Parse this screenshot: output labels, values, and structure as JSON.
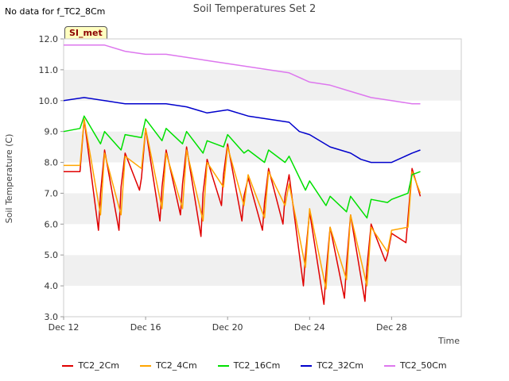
{
  "header": {
    "no_data": "No data for f_TC2_8Cm",
    "title": "Soil Temperatures Set 2",
    "badge": "SI_met"
  },
  "chart_data": {
    "type": "line",
    "title": "Soil Temperatures Set 2",
    "xlabel": "Time",
    "ylabel": "Soil Temperature (C)",
    "xlim": [
      0,
      19.4
    ],
    "ylim": [
      3.0,
      12.0
    ],
    "y_ticks": [
      "3.0",
      "4.0",
      "5.0",
      "6.0",
      "7.0",
      "8.0",
      "9.0",
      "10.0",
      "11.0",
      "12.0"
    ],
    "x_ticks": [
      {
        "label": "Dec 12",
        "value": 0
      },
      {
        "label": "Dec 16",
        "value": 4
      },
      {
        "label": "Dec 20",
        "value": 8
      },
      {
        "label": "Dec 24",
        "value": 12
      },
      {
        "label": "Dec 28",
        "value": 16
      }
    ],
    "grid": true,
    "legend_position": "bottom",
    "x_units": "days since Dec 12",
    "series": [
      {
        "name": "TC2_2Cm",
        "color": "#e00000",
        "x": [
          0,
          0.8,
          1.0,
          1.7,
          1.8,
          2.0,
          2.7,
          2.8,
          3.0,
          3.7,
          3.8,
          4.0,
          4.7,
          4.8,
          5.0,
          5.7,
          5.8,
          6.0,
          6.7,
          6.8,
          7.0,
          7.7,
          7.8,
          8.0,
          8.7,
          8.8,
          9.0,
          9.7,
          9.8,
          10.0,
          10.7,
          10.8,
          11.0,
          11.7,
          11.8,
          12.0,
          12.7,
          12.8,
          13.0,
          13.7,
          13.8,
          14.0,
          14.7,
          14.8,
          15.0,
          15.7,
          15.8,
          16.0,
          16.7,
          16.8,
          17.0,
          17.4
        ],
        "values": [
          7.7,
          7.7,
          9.4,
          5.8,
          7.0,
          8.4,
          5.8,
          7.2,
          8.3,
          7.1,
          7.5,
          9.1,
          6.1,
          7.2,
          8.4,
          6.3,
          7.3,
          8.5,
          5.6,
          7.0,
          8.1,
          6.6,
          7.6,
          8.6,
          6.1,
          6.9,
          7.5,
          5.8,
          6.7,
          7.8,
          6.0,
          6.9,
          7.6,
          4.0,
          5.0,
          6.4,
          3.4,
          4.4,
          5.9,
          3.6,
          4.7,
          6.3,
          3.5,
          4.6,
          6.0,
          4.8,
          5.0,
          5.7,
          5.4,
          6.2,
          7.8,
          6.9
        ]
      },
      {
        "name": "TC2_4Cm",
        "color": "#ffa500",
        "x": [
          0,
          0.8,
          1.0,
          1.8,
          2.0,
          2.8,
          3.0,
          3.8,
          4.0,
          4.8,
          5.0,
          5.8,
          6.0,
          6.8,
          7.0,
          7.8,
          8.0,
          8.8,
          9.0,
          9.8,
          10.0,
          10.8,
          11.0,
          11.8,
          12.0,
          12.8,
          13.0,
          13.8,
          14.0,
          14.8,
          15.0,
          15.8,
          16.0,
          16.8,
          17.0,
          17.4
        ],
        "values": [
          7.9,
          7.9,
          9.4,
          6.3,
          8.3,
          6.3,
          8.2,
          7.8,
          9.1,
          6.5,
          8.3,
          6.5,
          8.4,
          6.1,
          8.0,
          7.2,
          8.5,
          6.6,
          7.6,
          6.2,
          7.7,
          6.6,
          7.3,
          4.6,
          6.5,
          3.9,
          5.9,
          4.2,
          6.3,
          4.0,
          5.9,
          5.1,
          5.8,
          5.9,
          7.7,
          7.0
        ]
      },
      {
        "name": "TC2_16Cm",
        "color": "#00e000",
        "x": [
          0,
          0.8,
          1.0,
          1.8,
          2.0,
          2.8,
          3.0,
          3.8,
          4.0,
          4.8,
          5.0,
          5.8,
          6.0,
          6.8,
          7.0,
          7.8,
          8.0,
          8.8,
          9.0,
          9.8,
          10.0,
          10.8,
          11.0,
          11.8,
          12.0,
          12.8,
          13.0,
          13.8,
          14.0,
          14.8,
          15.0,
          15.8,
          16.0,
          16.8,
          17.0,
          17.4
        ],
        "values": [
          9.0,
          9.1,
          9.5,
          8.6,
          9.0,
          8.4,
          8.9,
          8.8,
          9.4,
          8.7,
          9.1,
          8.6,
          9.0,
          8.3,
          8.7,
          8.5,
          8.9,
          8.3,
          8.4,
          8.0,
          8.4,
          8.0,
          8.2,
          7.1,
          7.4,
          6.6,
          6.9,
          6.4,
          6.9,
          6.2,
          6.8,
          6.7,
          6.8,
          7.0,
          7.6,
          7.7
        ]
      },
      {
        "name": "TC2_32Cm",
        "color": "#0000cc",
        "x": [
          0,
          1.0,
          2.0,
          3.0,
          4.0,
          5.0,
          6.0,
          7.0,
          8.0,
          9.0,
          10.0,
          11.0,
          11.5,
          12.0,
          13.0,
          14.0,
          14.5,
          15.0,
          16.0,
          17.0,
          17.4
        ],
        "values": [
          10.0,
          10.1,
          10.0,
          9.9,
          9.9,
          9.9,
          9.8,
          9.6,
          9.7,
          9.5,
          9.4,
          9.3,
          9.0,
          8.9,
          8.5,
          8.3,
          8.1,
          8.0,
          8.0,
          8.3,
          8.4
        ]
      },
      {
        "name": "TC2_50Cm",
        "color": "#dd77ee",
        "x": [
          0,
          1.0,
          2.0,
          3.0,
          4.0,
          5.0,
          6.0,
          7.0,
          8.0,
          9.0,
          10.0,
          11.0,
          12.0,
          13.0,
          14.0,
          15.0,
          16.0,
          17.0,
          17.4
        ],
        "values": [
          11.8,
          11.8,
          11.8,
          11.6,
          11.5,
          11.5,
          11.4,
          11.3,
          11.2,
          11.1,
          11.0,
          10.9,
          10.6,
          10.5,
          10.3,
          10.1,
          10.0,
          9.9,
          9.9
        ]
      }
    ]
  }
}
